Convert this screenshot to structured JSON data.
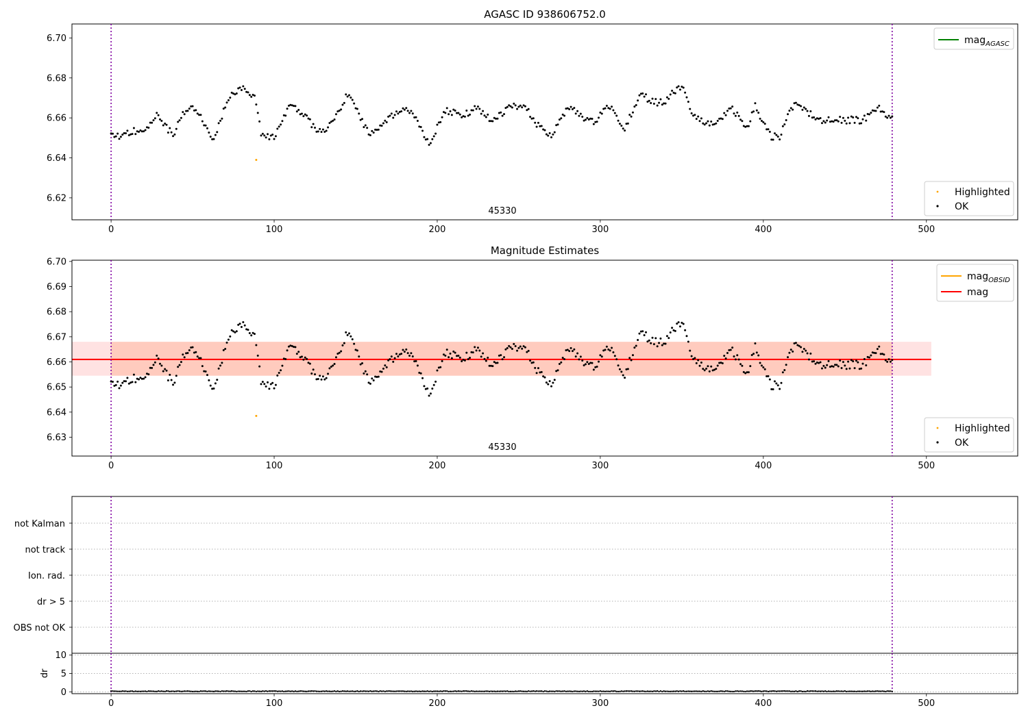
{
  "chart_data": [
    {
      "type": "scatter",
      "title": "AGASC ID 938606752.0",
      "obsid_label": "45330",
      "xlim": [
        -24,
        556
      ],
      "ylim": [
        6.609,
        6.707
      ],
      "x_ticks": [
        0,
        100,
        200,
        300,
        400,
        500
      ],
      "y_ticks": [
        6.62,
        6.64,
        6.66,
        6.68,
        6.7
      ],
      "y_tick_decimals": 2,
      "obs_boundaries": [
        0,
        479
      ],
      "legend_top": {
        "position": "top-right",
        "entries": [
          {
            "label": "mag",
            "subscript": "AGASC",
            "color": "#008000"
          }
        ]
      },
      "legend_bottom": {
        "position": "bottom-right",
        "entries": [
          {
            "label": "Highlighted",
            "color": "#ffa500"
          },
          {
            "label": "OK",
            "color": "#000000"
          }
        ]
      },
      "series": [
        {
          "name": "OK",
          "color": "#000000",
          "x_start": 0,
          "x_end": 479,
          "n": 480,
          "baseline": 6.661,
          "wave_amp": 0.0095,
          "wave_period": 34,
          "noise": 0.0017,
          "seed": 938606752,
          "keypoints": [
            [
              0,
              6.652
            ],
            [
              3,
              6.649
            ],
            [
              10,
              6.65
            ],
            [
              20,
              6.655
            ],
            [
              28,
              6.663
            ],
            [
              34,
              6.655
            ],
            [
              38,
              6.65
            ],
            [
              48,
              6.665
            ],
            [
              56,
              6.661
            ],
            [
              62,
              6.65
            ],
            [
              72,
              6.668
            ],
            [
              80,
              6.673
            ],
            [
              88,
              6.672
            ],
            [
              92,
              6.655
            ],
            [
              100,
              6.651
            ],
            [
              110,
              6.665
            ],
            [
              120,
              6.66
            ],
            [
              130,
              6.655
            ],
            [
              140,
              6.662
            ],
            [
              145,
              6.67
            ],
            [
              155,
              6.657
            ],
            [
              160,
              6.654
            ],
            [
              170,
              6.66
            ],
            [
              185,
              6.662
            ],
            [
              195,
              6.65
            ],
            [
              205,
              6.663
            ],
            [
              215,
              6.658
            ],
            [
              225,
              6.667
            ],
            [
              235,
              6.66
            ],
            [
              245,
              6.663
            ],
            [
              255,
              6.664
            ],
            [
              270,
              6.652
            ],
            [
              280,
              6.662
            ],
            [
              295,
              6.66
            ],
            [
              305,
              6.667
            ],
            [
              315,
              6.652
            ],
            [
              325,
              6.673
            ],
            [
              340,
              6.668
            ],
            [
              350,
              6.674
            ],
            [
              355,
              6.663
            ],
            [
              370,
              6.658
            ],
            [
              380,
              6.663
            ],
            [
              390,
              6.654
            ],
            [
              395,
              6.668
            ],
            [
              405,
              6.652
            ],
            [
              410,
              6.65
            ],
            [
              420,
              6.666
            ],
            [
              440,
              6.66
            ],
            [
              450,
              6.656
            ],
            [
              460,
              6.659
            ],
            [
              470,
              6.668
            ],
            [
              479,
              6.658
            ]
          ]
        },
        {
          "name": "Highlighted",
          "color": "#ffa500",
          "x": [
            89
          ],
          "y": [
            6.639
          ]
        }
      ]
    },
    {
      "type": "scatter",
      "title": "Magnitude Estimates",
      "obsid_label": "45330",
      "xlim": [
        -24,
        556
      ],
      "ylim": [
        6.6225,
        6.7005
      ],
      "x_ticks": [
        0,
        100,
        200,
        300,
        400,
        500
      ],
      "y_ticks": [
        6.63,
        6.64,
        6.65,
        6.66,
        6.67,
        6.68,
        6.69,
        6.7
      ],
      "y_tick_decimals": 2,
      "obs_boundaries": [
        0,
        479
      ],
      "mag_line": {
        "value": 6.661,
        "color": "#ff0000",
        "x_range": [
          -24,
          503
        ]
      },
      "mag_band": {
        "low": 6.6545,
        "high": 6.668,
        "color": "#ff6c6c",
        "x_range": [
          -24,
          503
        ]
      },
      "obsid_band": {
        "low": 6.6545,
        "high": 6.668,
        "color": "#ffa07a",
        "x_range": [
          0,
          479
        ]
      },
      "legend_top": {
        "position": "top-right",
        "entries": [
          {
            "label": "mag",
            "subscript": "OBSID",
            "color": "#ffa500"
          },
          {
            "label": "mag",
            "subscript": "",
            "color": "#ff0000"
          }
        ]
      },
      "legend_bottom": {
        "position": "bottom-right",
        "entries": [
          {
            "label": "Highlighted",
            "color": "#ffa500"
          },
          {
            "label": "OK",
            "color": "#000000"
          }
        ]
      },
      "series": [
        {
          "name": "OK",
          "color": "#000000",
          "same_as_panel": 0
        },
        {
          "name": "Highlighted",
          "color": "#ffa500",
          "x": [
            89
          ],
          "y": [
            6.6385
          ]
        }
      ]
    },
    {
      "type": "scatter",
      "title": "",
      "xlim": [
        -24,
        556
      ],
      "obs_boundaries": [
        0,
        479
      ],
      "flag_rows": [
        "not Kalman",
        "not track",
        "Ion. rad.",
        "dr > 5",
        "OBS not OK"
      ],
      "flag_points": []
    },
    {
      "type": "scatter",
      "title": "",
      "ylabel": "dr",
      "xlim": [
        -24,
        556
      ],
      "ylim": [
        -0.5,
        10.5
      ],
      "x_ticks": [
        0,
        100,
        200,
        300,
        400,
        500
      ],
      "y_ticks": [
        0,
        5,
        10
      ],
      "y_tick_decimals": 0,
      "obs_boundaries": [
        0,
        479
      ],
      "series": [
        {
          "name": "dr",
          "color": "#000000",
          "x_start": 0,
          "x_end": 479,
          "n": 480,
          "baseline": 0.15,
          "noise": 0.08,
          "seed": 45330
        }
      ]
    }
  ]
}
